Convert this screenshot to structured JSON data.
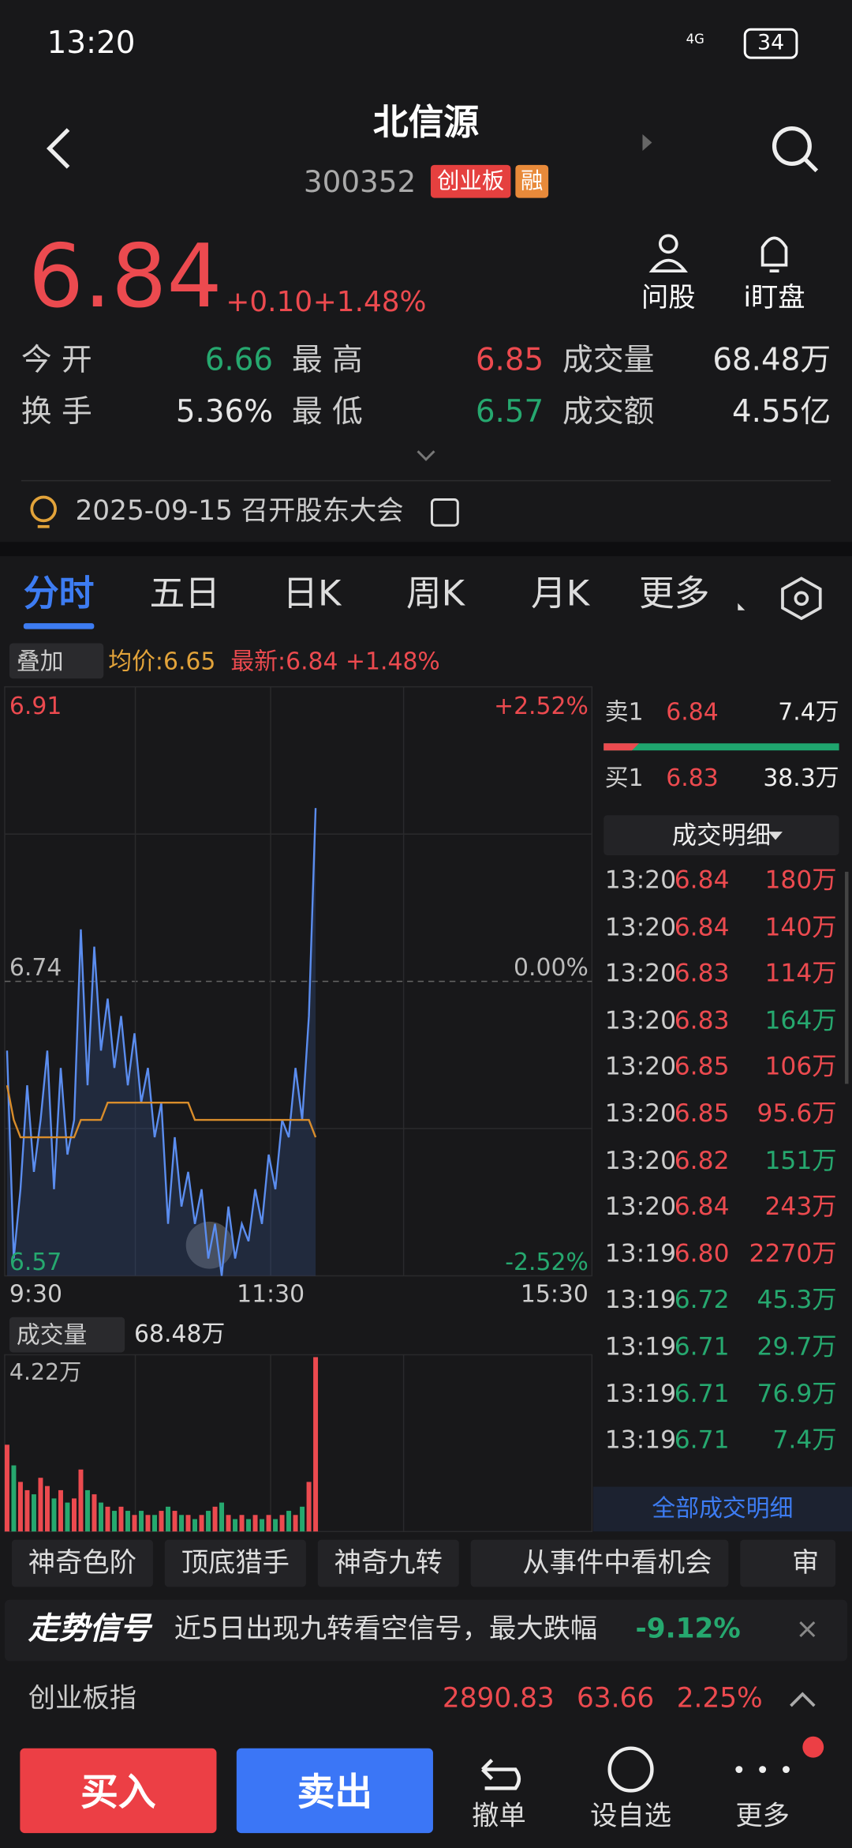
{
  "status_bar": {
    "time": "13:20",
    "network": "4G",
    "battery": "34"
  },
  "header": {
    "name": "北信源",
    "code": "300352",
    "tags": [
      "创业板",
      "融"
    ]
  },
  "quote": {
    "price": "6.84",
    "change": "+0.10",
    "change_pct": "+1.48%"
  },
  "actions": [
    "问股",
    "i盯盘"
  ],
  "stats": [
    [
      {
        "label": "今 开",
        "value": "6.66",
        "color": "#26a86f"
      },
      {
        "label": "最 高",
        "value": "6.85",
        "color": "#ec4a4f"
      },
      {
        "label": "成交量",
        "value": "68.48万",
        "color": "#e6e6e6"
      }
    ],
    [
      {
        "label": "换 手",
        "value": "5.36%",
        "color": "#e6e6e6"
      },
      {
        "label": "最 低",
        "value": "6.57",
        "color": "#26a86f"
      },
      {
        "label": "成交额",
        "value": "4.55亿",
        "color": "#e6e6e6"
      }
    ]
  ],
  "notice": "2025-09-15 召开股东大会",
  "tabs": [
    "分时",
    "五日",
    "日K",
    "周K",
    "月K",
    "更多"
  ],
  "overlay": {
    "button": "叠加",
    "avg": "均价:6.65",
    "latest": "最新:6.84 +1.48%"
  },
  "intraday": {
    "high": 6.91,
    "mid": 6.74,
    "low": 6.57,
    "high_pct": "+2.52%",
    "mid_pct": "0.00%",
    "low_pct": "-2.52%",
    "x_labels": [
      "9:30",
      "11:30",
      "15:30"
    ],
    "price": [
      6.7,
      6.58,
      6.62,
      6.68,
      6.63,
      6.66,
      6.7,
      6.62,
      6.69,
      6.64,
      6.66,
      6.77,
      6.68,
      6.76,
      6.7,
      6.73,
      6.69,
      6.72,
      6.68,
      6.71,
      6.67,
      6.69,
      6.65,
      6.67,
      6.6,
      6.65,
      6.61,
      6.63,
      6.6,
      6.62,
      6.58,
      6.6,
      6.57,
      6.61,
      6.58,
      6.6,
      6.59,
      6.62,
      6.6,
      6.64,
      6.62,
      6.66,
      6.65,
      6.69,
      6.66,
      6.72,
      6.84
    ],
    "avg": [
      6.68,
      6.66,
      6.65,
      6.65,
      6.65,
      6.65,
      6.65,
      6.65,
      6.65,
      6.65,
      6.65,
      6.66,
      6.66,
      6.66,
      6.66,
      6.67,
      6.67,
      6.67,
      6.67,
      6.67,
      6.67,
      6.67,
      6.67,
      6.67,
      6.67,
      6.67,
      6.67,
      6.67,
      6.66,
      6.66,
      6.66,
      6.66,
      6.66,
      6.66,
      6.66,
      6.66,
      6.66,
      6.66,
      6.66,
      6.66,
      6.66,
      6.66,
      6.66,
      6.66,
      6.66,
      6.66,
      6.65
    ],
    "volume_button": "成交量",
    "volume_total": "68.48万",
    "volume_max": {
      "value": 4.22,
      "label": "4.22万"
    },
    "volume": [
      2.1,
      1.6,
      1.2,
      1.0,
      0.9,
      1.3,
      1.1,
      0.8,
      1.0,
      0.7,
      0.8,
      1.5,
      1.0,
      0.9,
      0.7,
      0.6,
      0.5,
      0.6,
      0.5,
      0.4,
      0.5,
      0.4,
      0.4,
      0.5,
      0.6,
      0.5,
      0.4,
      0.4,
      0.3,
      0.4,
      0.5,
      0.6,
      0.7,
      0.4,
      0.3,
      0.4,
      0.3,
      0.4,
      0.3,
      0.4,
      0.3,
      0.4,
      0.5,
      0.4,
      0.6,
      1.2,
      4.22
    ]
  },
  "order_book": [
    {
      "label": "卖1",
      "price": "6.84",
      "volume": "7.4万"
    },
    {
      "label": "买1",
      "price": "6.83",
      "volume": "38.3万"
    }
  ],
  "trades_title": "成交明细",
  "trades": [
    {
      "time": "13:20",
      "price": "6.84",
      "volume": "180万",
      "price_color": "#ec4a4f",
      "volume_color": "#ec4a4f"
    },
    {
      "time": "13:20",
      "price": "6.84",
      "volume": "140万",
      "price_color": "#ec4a4f",
      "volume_color": "#ec4a4f"
    },
    {
      "time": "13:20",
      "price": "6.83",
      "volume": "114万",
      "price_color": "#ec4a4f",
      "volume_color": "#ec4a4f"
    },
    {
      "time": "13:20",
      "price": "6.83",
      "volume": "164万",
      "price_color": "#ec4a4f",
      "volume_color": "#26a86f"
    },
    {
      "time": "13:20",
      "price": "6.85",
      "volume": "106万",
      "price_color": "#ec4a4f",
      "volume_color": "#ec4a4f"
    },
    {
      "time": "13:20",
      "price": "6.85",
      "volume": "95.6万",
      "price_color": "#ec4a4f",
      "volume_color": "#ec4a4f"
    },
    {
      "time": "13:20",
      "price": "6.82",
      "volume": "151万",
      "price_color": "#ec4a4f",
      "volume_color": "#26a86f"
    },
    {
      "time": "13:20",
      "price": "6.84",
      "volume": "243万",
      "price_color": "#ec4a4f",
      "volume_color": "#ec4a4f"
    },
    {
      "time": "13:19",
      "price": "6.80",
      "volume": "2270万",
      "price_color": "#ec4a4f",
      "volume_color": "#ec4a4f"
    },
    {
      "time": "13:19",
      "price": "6.72",
      "volume": "45.3万",
      "price_color": "#26a86f",
      "volume_color": "#26a86f"
    },
    {
      "time": "13:19",
      "price": "6.71",
      "volume": "29.7万",
      "price_color": "#26a86f",
      "volume_color": "#26a86f"
    },
    {
      "time": "13:19",
      "price": "6.71",
      "volume": "76.9万",
      "price_color": "#26a86f",
      "volume_color": "#26a86f"
    },
    {
      "time": "13:19",
      "price": "6.71",
      "volume": "7.4万",
      "price_color": "#26a86f",
      "volume_color": "#26a86f"
    }
  ],
  "trades_more": "全部成交明细",
  "tools": [
    "神奇色阶",
    "顶底猎手",
    "神奇九转",
    "从事件中看机会",
    "审"
  ],
  "signal": {
    "title": "走势信号",
    "text": "近5日出现九转看空信号，最大跌幅",
    "value": "-9.12%"
  },
  "index": {
    "name": "创业板指",
    "value": "2890.83",
    "change": "63.66",
    "pct": "2.25%"
  },
  "bottom": {
    "buy": "买入",
    "sell": "卖出",
    "items": [
      "撤单",
      "设自选",
      "更多"
    ]
  }
}
